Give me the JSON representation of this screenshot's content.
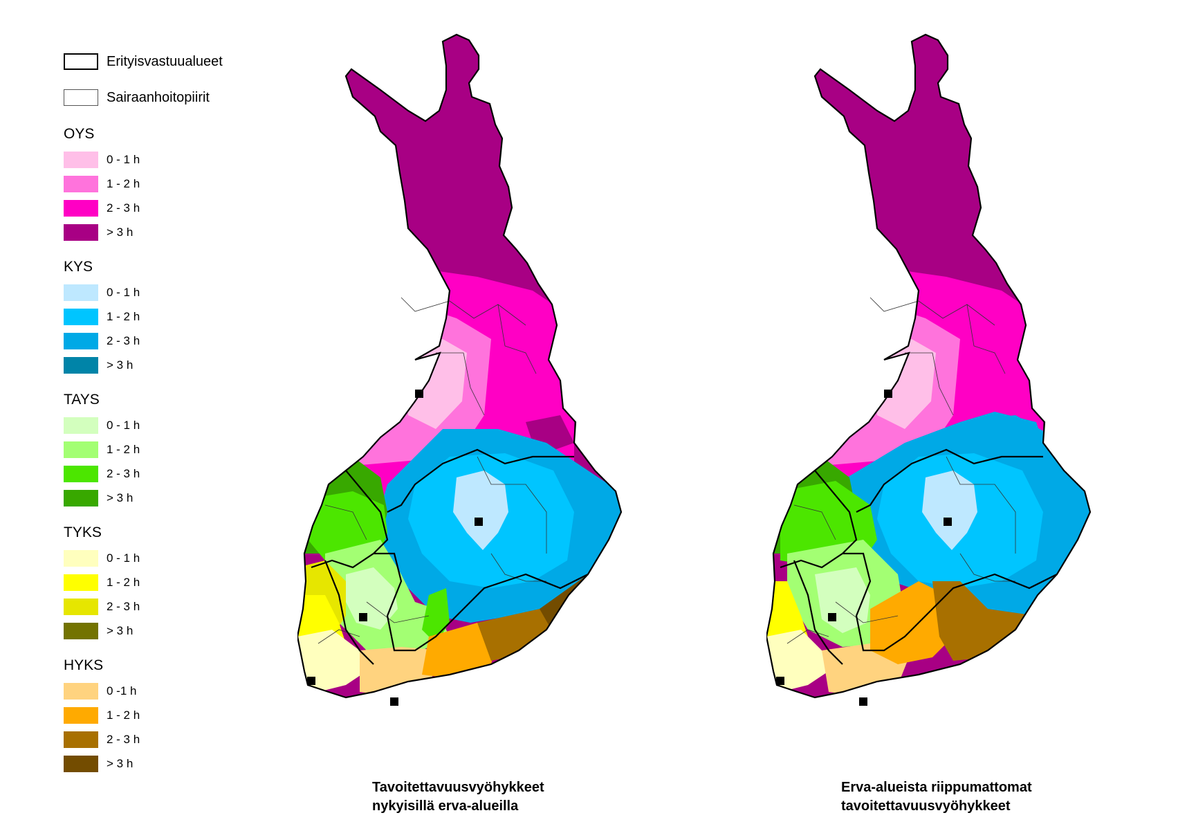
{
  "legend": {
    "boundaries": [
      {
        "label": "Erityisvastuualueet",
        "style": "thick"
      },
      {
        "label": "Sairaanhoitopiirit",
        "style": "thin"
      }
    ],
    "groups": [
      {
        "name": "OYS",
        "classes": [
          {
            "label": "0 - 1 h",
            "color": "#ffbfe8"
          },
          {
            "label": "1 - 2 h",
            "color": "#ff73dc"
          },
          {
            "label": "2 - 3 h",
            "color": "#ff00c4"
          },
          {
            "label": "> 3 h",
            "color": "#a80084"
          }
        ]
      },
      {
        "name": "KYS",
        "classes": [
          {
            "label": "0 - 1 h",
            "color": "#bee8ff"
          },
          {
            "label": "1 - 2 h",
            "color": "#00c5ff"
          },
          {
            "label": "2 - 3 h",
            "color": "#00a9e6"
          },
          {
            "label": "> 3 h",
            "color": "#0084a8"
          }
        ]
      },
      {
        "name": "TAYS",
        "classes": [
          {
            "label": "0 - 1 h",
            "color": "#d3ffbe"
          },
          {
            "label": "1 - 2 h",
            "color": "#a3ff73"
          },
          {
            "label": "2 - 3 h",
            "color": "#4ce600"
          },
          {
            "label": "> 3 h",
            "color": "#38a800"
          }
        ]
      },
      {
        "name": "TYKS",
        "classes": [
          {
            "label": "0 - 1 h",
            "color": "#ffffbe"
          },
          {
            "label": "1 - 2 h",
            "color": "#ffff00"
          },
          {
            "label": "2 - 3 h",
            "color": "#e6e600"
          },
          {
            "label": "> 3 h",
            "color": "#737300"
          }
        ]
      },
      {
        "name": "HYKS",
        "classes": [
          {
            "label": "0 -1 h",
            "color": "#ffd37f"
          },
          {
            "label": "1 - 2 h",
            "color": "#ffaa00"
          },
          {
            "label": "2 - 3 h",
            "color": "#a87000"
          },
          {
            "label": "> 3 h",
            "color": "#734c00"
          }
        ]
      }
    ]
  },
  "maps": [
    {
      "caption_line1": "Tavoitettavuusvyöhykkeet",
      "caption_line2": "nykyisillä erva-alueilla"
    },
    {
      "caption_line1": "Erva-alueista riippumattomat",
      "caption_line2": "tavoitettavuusvyöhykkeet"
    }
  ]
}
